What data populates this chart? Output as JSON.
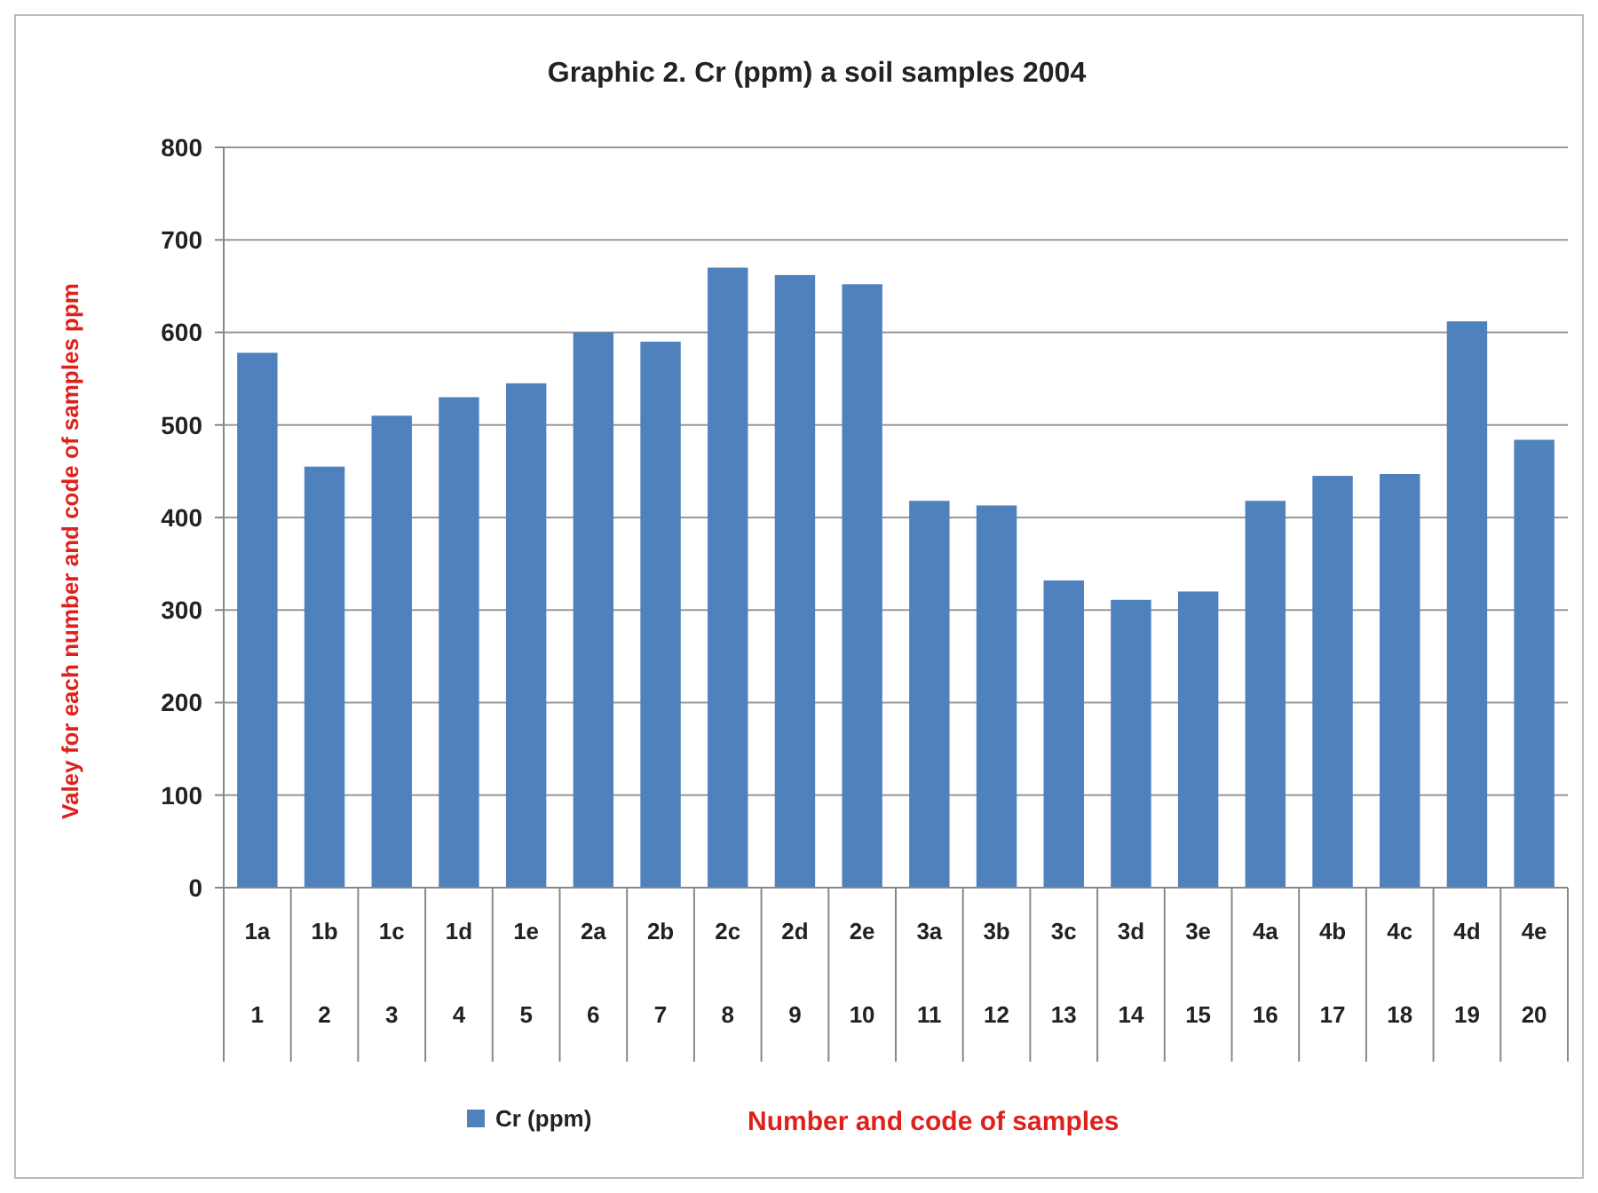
{
  "chart_data": {
    "type": "bar",
    "title": "Graphic  2. Cr (ppm) a soil samples 2004",
    "annotations": [
      "Number and code of samples"
    ],
    "ylabel": "Valey for each number and code of samples  ppm",
    "categories": [
      "1a\n1",
      "1b\n2",
      "1c\n3",
      "1d\n4",
      "1e\n5",
      "2a\n6",
      "2b\n7",
      "2c\n8",
      "2d\n9",
      "2e\n10",
      "3a\n11",
      "3b\n12",
      "3c\n13",
      "3d\n14",
      "3e\n15",
      "4a\n16",
      "4b\n17",
      "4c\n18",
      "4d\n19",
      "4e\n20"
    ],
    "series": [
      {
        "name": "Cr (ppm)",
        "color": "#4f81bd",
        "values": [
          578,
          455,
          510,
          530,
          545,
          600,
          590,
          670,
          662,
          652,
          418,
          413,
          332,
          311,
          320,
          418,
          445,
          447,
          612,
          484
        ]
      }
    ],
    "ylim": [
      0,
      800
    ],
    "yticks": [
      0,
      100,
      200,
      300,
      400,
      500,
      600,
      700,
      800
    ],
    "grid": "y",
    "legend": "bottom"
  }
}
